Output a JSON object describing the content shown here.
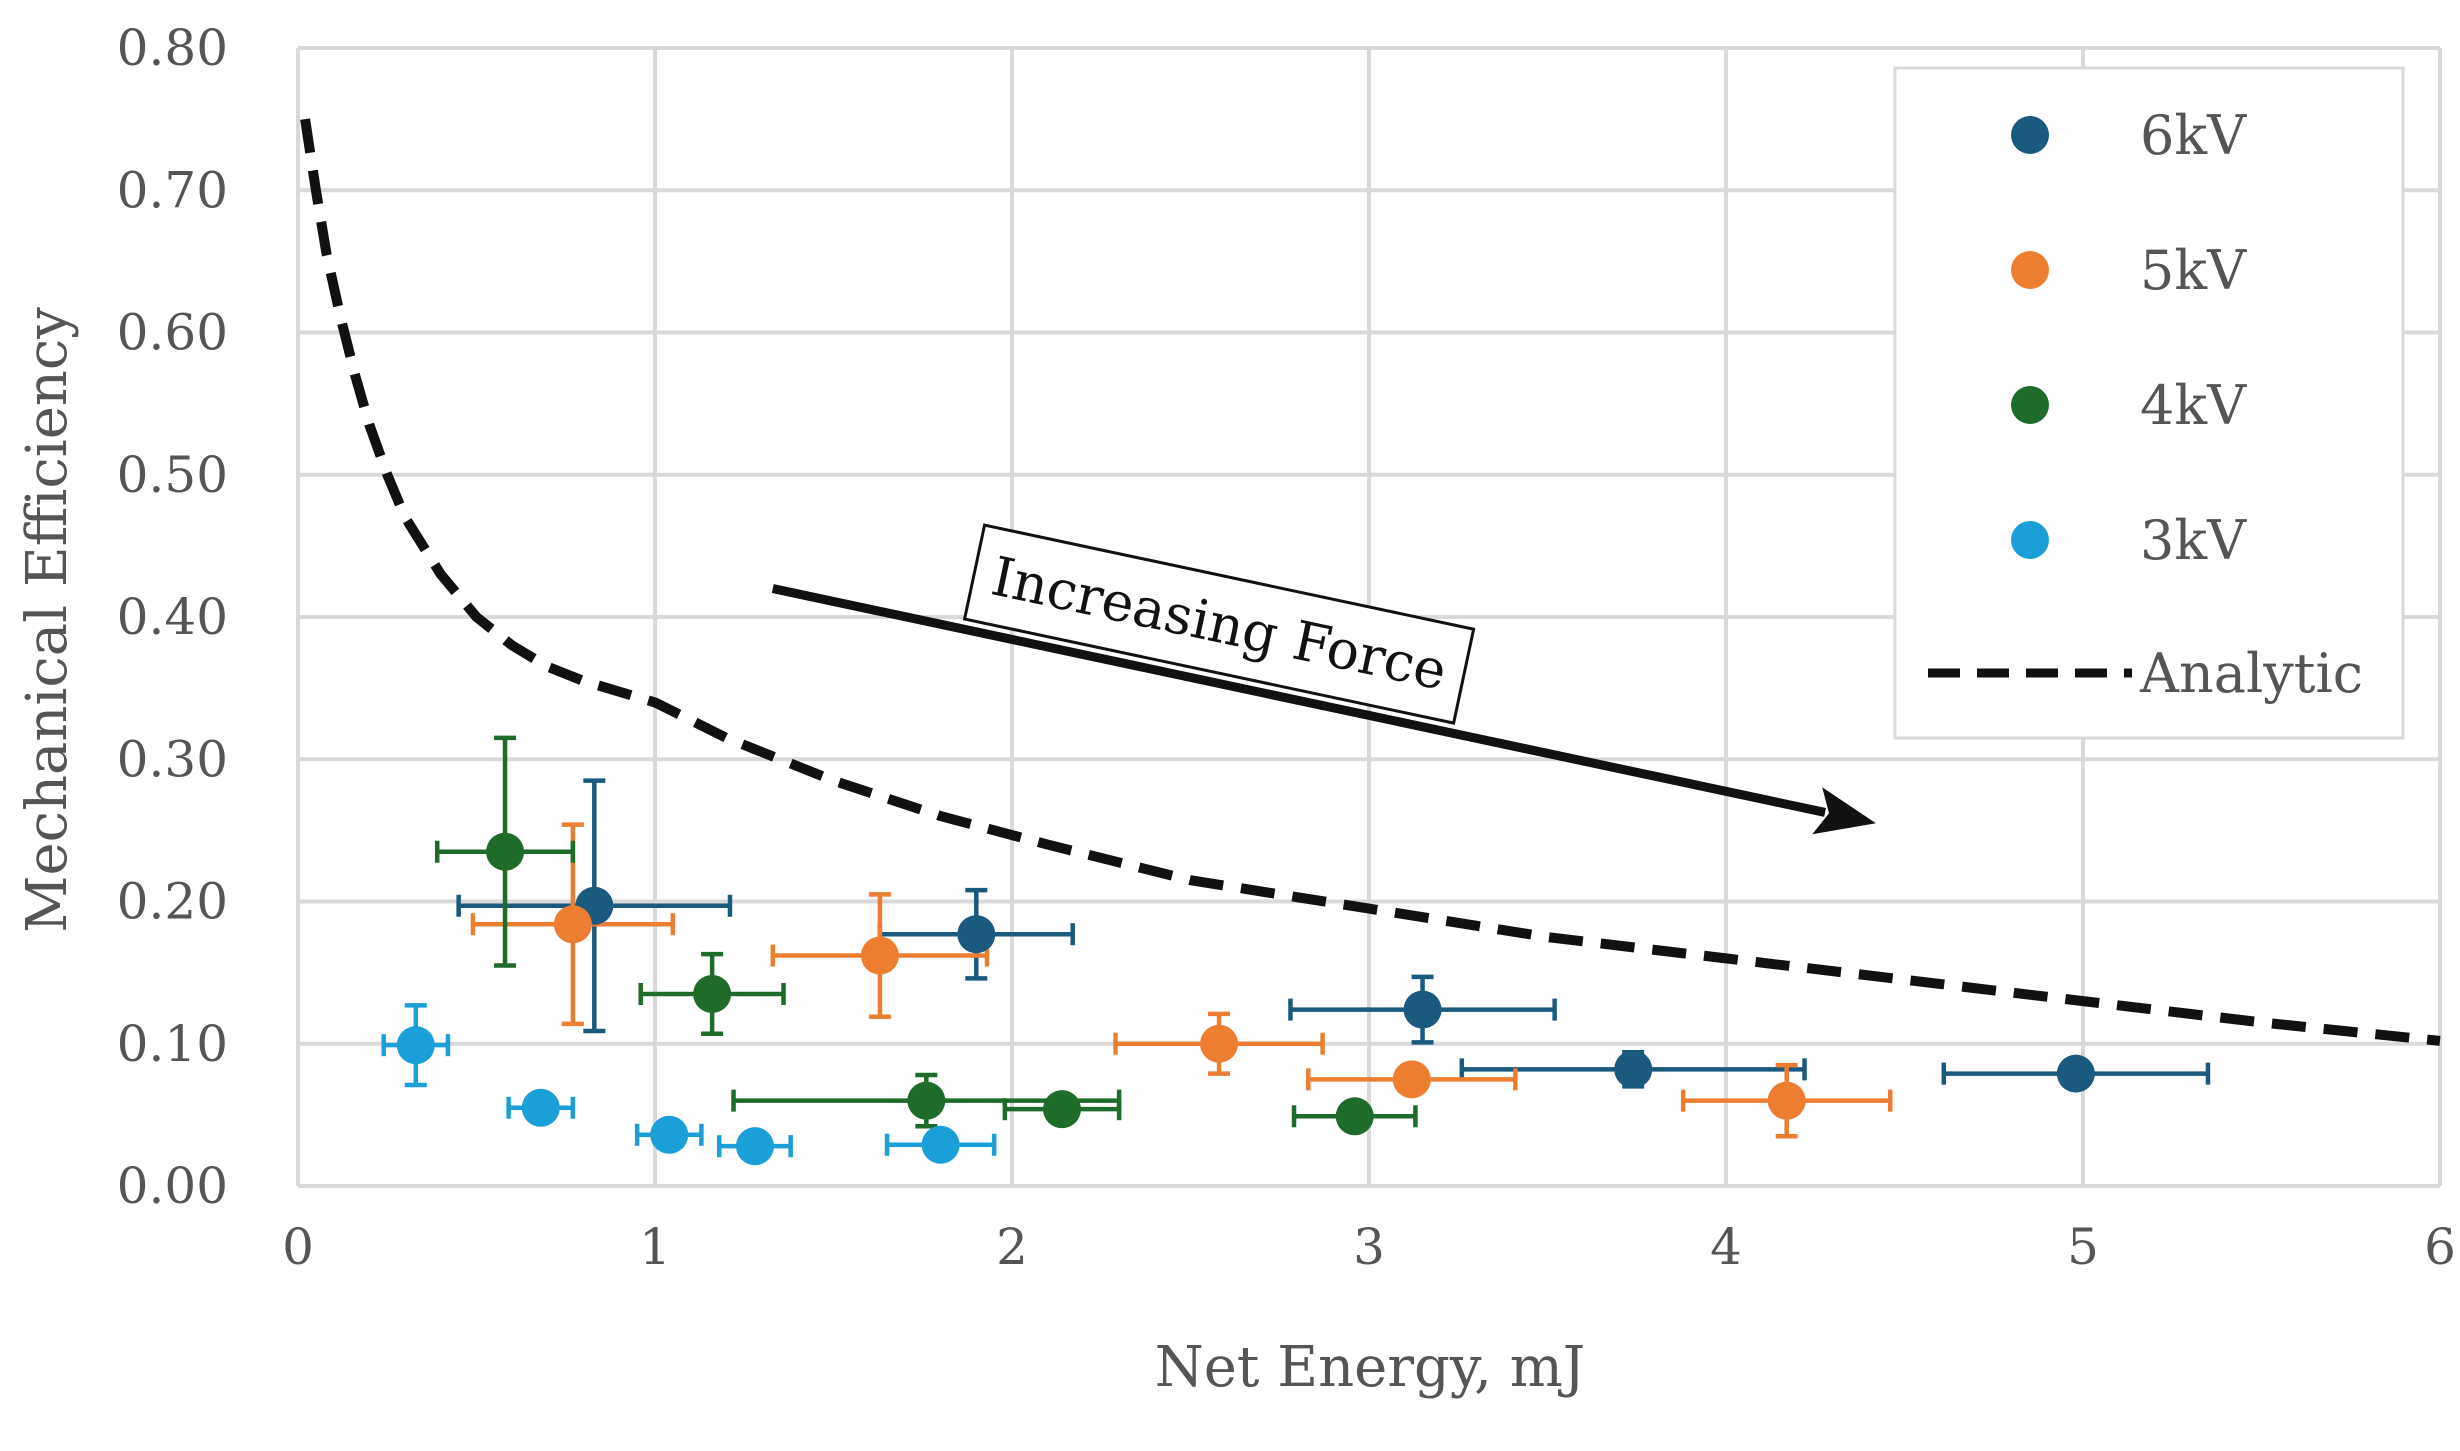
{
  "chart_data": {
    "type": "scatter",
    "title": "",
    "xlabel": "Net Energy, mJ",
    "ylabel": "Mechanical Efficiency",
    "xlim": [
      0,
      6
    ],
    "ylim": [
      0,
      0.8
    ],
    "x_ticks": [
      0,
      1,
      2,
      3,
      4,
      5,
      6
    ],
    "x_tick_labels": [
      "0",
      "1",
      "2",
      "3",
      "4",
      "5",
      "6"
    ],
    "y_ticks": [
      0,
      0.1,
      0.2,
      0.3,
      0.4,
      0.5,
      0.6,
      0.7,
      0.8
    ],
    "y_tick_labels": [
      "0.00",
      "0.10",
      "0.20",
      "0.30",
      "0.40",
      "0.50",
      "0.60",
      "0.70",
      "0.80"
    ],
    "grid": true,
    "legend_position": "top-right",
    "series": [
      {
        "name": "6kV",
        "color": "#1a5a7e",
        "points": [
          {
            "x": 0.83,
            "y": 0.197,
            "xerr": 0.38,
            "yerr": 0.088
          },
          {
            "x": 1.9,
            "y": 0.177,
            "xerr": 0.27,
            "yerr": 0.031
          },
          {
            "x": 3.15,
            "y": 0.124,
            "xerr": 0.37,
            "yerr": 0.023
          },
          {
            "x": 3.74,
            "y": 0.082,
            "xerr": 0.48,
            "yerr": 0.012
          },
          {
            "x": 4.98,
            "y": 0.079,
            "xerr": 0.37,
            "yerr": 0.006
          }
        ]
      },
      {
        "name": "5kV",
        "color": "#ed7d31",
        "points": [
          {
            "x": 0.77,
            "y": 0.184,
            "xerr": 0.28,
            "yerr": 0.07
          },
          {
            "x": 1.63,
            "y": 0.162,
            "xerr": 0.3,
            "yerr": 0.043
          },
          {
            "x": 2.58,
            "y": 0.1,
            "xerr": 0.29,
            "yerr": 0.021
          },
          {
            "x": 3.12,
            "y": 0.075,
            "xerr": 0.29,
            "yerr": 0.009
          },
          {
            "x": 4.17,
            "y": 0.06,
            "xerr": 0.29,
            "yerr": 0.025
          }
        ]
      },
      {
        "name": "4kV",
        "color": "#1e6b2a",
        "points": [
          {
            "x": 0.58,
            "y": 0.235,
            "xerr": 0.19,
            "yerr": 0.08
          },
          {
            "x": 1.16,
            "y": 0.135,
            "xerr": 0.2,
            "yerr": 0.028
          },
          {
            "x": 1.76,
            "y": 0.06,
            "xerr": 0.54,
            "yerr": 0.018
          },
          {
            "x": 2.14,
            "y": 0.054,
            "xerr": 0.16,
            "yerr": 0.008
          },
          {
            "x": 2.96,
            "y": 0.049,
            "xerr": 0.17,
            "yerr": 0.009
          }
        ]
      },
      {
        "name": "3kV",
        "color": "#1a9fd8",
        "points": [
          {
            "x": 0.33,
            "y": 0.099,
            "xerr": 0.09,
            "yerr": 0.028
          },
          {
            "x": 0.68,
            "y": 0.055,
            "xerr": 0.09,
            "yerr": 0.007
          },
          {
            "x": 1.04,
            "y": 0.036,
            "xerr": 0.09,
            "yerr": 0.006
          },
          {
            "x": 1.28,
            "y": 0.028,
            "xerr": 0.1,
            "yerr": 0.006
          },
          {
            "x": 1.8,
            "y": 0.029,
            "xerr": 0.15,
            "yerr": 0.006
          }
        ]
      }
    ],
    "analytic": {
      "name": "Analytic",
      "color": "#111111",
      "style": "dashed",
      "x": [
        0.02,
        0.05,
        0.08,
        0.12,
        0.16,
        0.2,
        0.25,
        0.3,
        0.4,
        0.5,
        0.6,
        0.7,
        0.8,
        1.0,
        1.2,
        1.5,
        1.8,
        2.1,
        2.5,
        3.0,
        3.5,
        4.0,
        4.5,
        5.0,
        5.5,
        6.0
      ],
      "y": [
        0.75,
        0.7,
        0.655,
        0.61,
        0.57,
        0.535,
        0.5,
        0.47,
        0.43,
        0.4,
        0.38,
        0.365,
        0.355,
        0.34,
        0.315,
        0.285,
        0.26,
        0.24,
        0.215,
        0.195,
        0.175,
        0.16,
        0.145,
        0.13,
        0.115,
        0.102
      ]
    },
    "annotation": {
      "text": "Increasing Force",
      "arrow_from": [
        1.33,
        0.42
      ],
      "arrow_to": [
        4.42,
        0.255
      ],
      "label_at": [
        2.58,
        0.395
      ]
    }
  }
}
